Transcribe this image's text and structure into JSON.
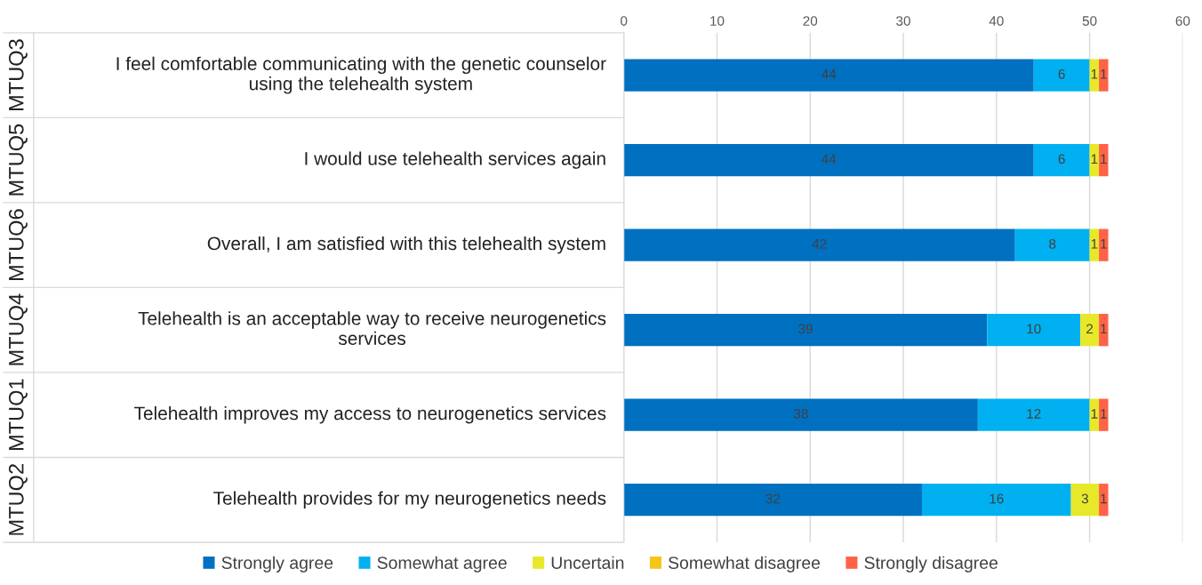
{
  "chart_data": {
    "type": "bar",
    "orientation": "horizontal",
    "stacked": true,
    "categories": [
      "I feel comfortable communicating with the genetic counselor using the telehealth system",
      "I would use telehealth services again",
      "Overall, I am satisfied with this telehealth system",
      "Telehealth is an acceptable way to receive neurogenetics services",
      "Telehealth improves my access to neurogenetics services",
      "Telehealth provides for my neurogenetics needs"
    ],
    "series": [
      {
        "name": "Strongly agree",
        "color": "#0070c0",
        "values": [
          44,
          44,
          42,
          39,
          38,
          32
        ],
        "value_labels": [
          "44",
          "44",
          "42",
          "39",
          "38",
          "32"
        ]
      },
      {
        "name": "Somewhat agree",
        "color": "#00b0f0",
        "values": [
          6,
          6,
          8,
          10,
          12,
          16
        ],
        "value_labels": [
          "6",
          "6",
          "8",
          "10",
          "12",
          "16"
        ]
      },
      {
        "name": "Uncertain",
        "color": "#e8e82a",
        "values": [
          1,
          1,
          1,
          2,
          1,
          3
        ],
        "value_labels": [
          "1",
          "1",
          "1",
          "2",
          "1",
          "3"
        ]
      },
      {
        "name": "Somewhat disagree",
        "color": "#f5c518",
        "values": [
          0,
          0,
          0,
          0,
          0,
          0
        ],
        "value_labels": [
          null,
          null,
          null,
          null,
          null,
          null
        ]
      },
      {
        "name": "Strongly disagree",
        "color": "#ff6347",
        "values": [
          1,
          1,
          1,
          1,
          1,
          1
        ],
        "value_labels": [
          "1",
          "1",
          "1",
          "1",
          "1",
          "1"
        ]
      }
    ],
    "annotations": [
      "MTUQ3",
      "MTUQ5",
      "MTUQ6",
      "MTUQ4",
      "MTUQ1",
      "MTUQ2"
    ],
    "xlim": [
      0,
      60
    ],
    "xticks": [
      0,
      10,
      20,
      30,
      40,
      50,
      60
    ],
    "grid": "x",
    "legend": "bottom"
  }
}
